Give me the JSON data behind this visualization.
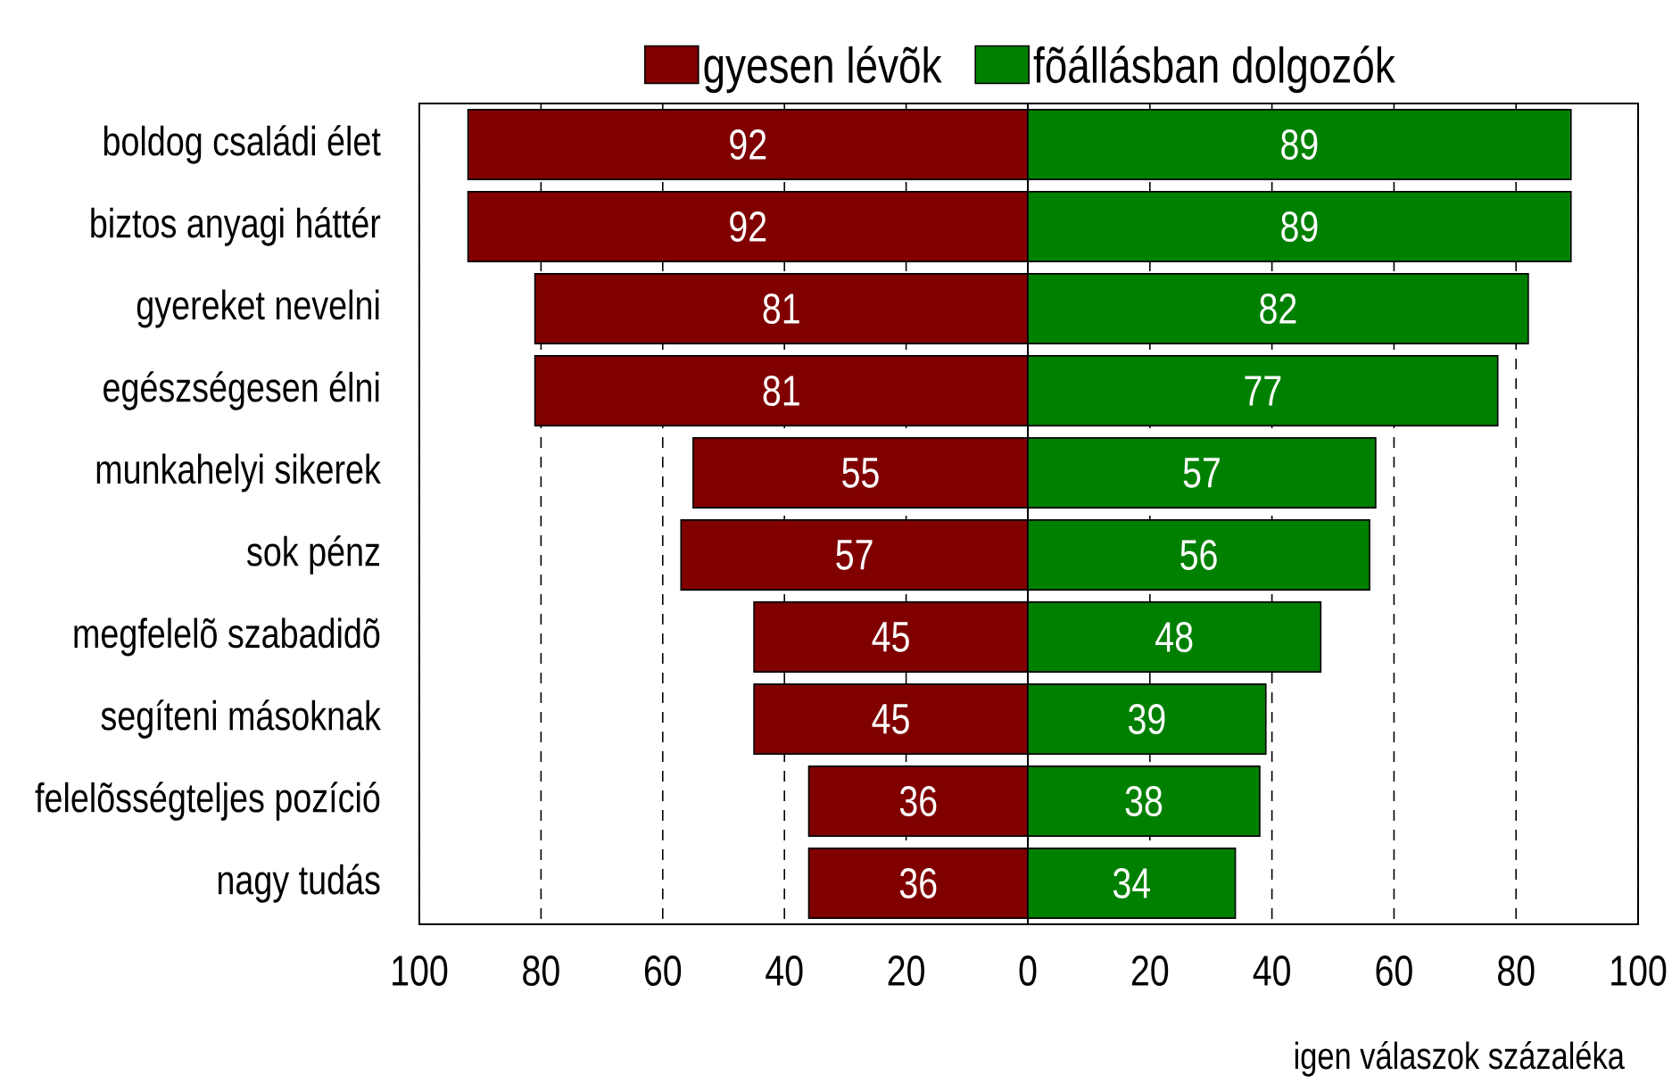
{
  "chart_data": [
    {
      "type": "bar",
      "orientation": "horizontal",
      "categories": [
        "boldog családi élet",
        "biztos anyagi háttér",
        "gyereket nevelni",
        "egészségesen élni",
        "munkahelyi sikerek",
        "sok pénz",
        "megfelelõ szabadidõ",
        "segíteni másoknak",
        "felelõsségteljes pozíció",
        "nagy tudás"
      ],
      "series": [
        {
          "name": "gyesen lévõk",
          "color": "#800000",
          "values": [
            92,
            92,
            81,
            81,
            55,
            57,
            45,
            45,
            36,
            36
          ]
        }
      ],
      "data_labels": true,
      "xlim": [
        100,
        0
      ],
      "xticks": [
        100,
        80,
        60,
        40,
        20,
        {
          "value": 0,
          "label": null
        }
      ],
      "grid": "x",
      "legend": "top right"
    },
    {
      "type": "bar",
      "orientation": "horizontal",
      "categories": [
        null,
        null,
        null,
        null,
        null,
        null,
        null,
        null,
        null,
        null
      ],
      "series": [
        {
          "name": "fõállásban dolgozók",
          "color": "#008000",
          "values": [
            89,
            89,
            82,
            77,
            57,
            56,
            48,
            39,
            38,
            34
          ]
        }
      ],
      "data_labels": true,
      "xlim": [
        0,
        100
      ],
      "xticks": [
        0,
        20,
        40,
        60,
        80,
        100
      ],
      "xlabel": "igen válaszok százaléka",
      "grid": "x",
      "legend": "top left"
    }
  ]
}
